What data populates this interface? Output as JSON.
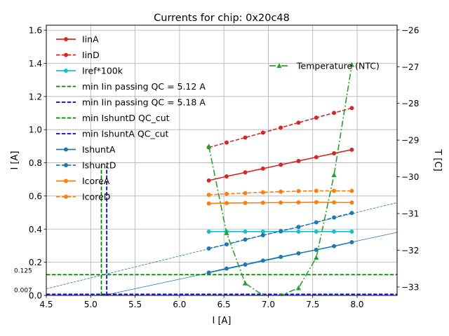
{
  "chart_data": {
    "type": "line",
    "title": "Currents for chip: 0x20c48",
    "xlabel": "I [A]",
    "ylabel": "I [A]",
    "y2label": "T [C]",
    "xlim": [
      4.5,
      8.45
    ],
    "ylim": [
      0.0,
      1.63
    ],
    "y2lim": [
      -33.23,
      -25.87
    ],
    "x_ticks": [
      "4.5",
      "5.0",
      "5.5",
      "6.0",
      "6.5",
      "7.0",
      "7.5",
      "8.0"
    ],
    "y_ticks": [
      "0.0",
      "0.2",
      "0.4",
      "0.6",
      "0.8",
      "1.0",
      "1.2",
      "1.4",
      "1.6"
    ],
    "y2_ticks": [
      "−33",
      "−32",
      "−31",
      "−30",
      "−29",
      "−28",
      "−27",
      "−26"
    ],
    "grid": true,
    "legend_placement": "upper-left",
    "x": [
      6.33,
      6.53,
      6.74,
      6.94,
      7.14,
      7.34,
      7.54,
      7.74,
      7.94
    ],
    "series": [
      {
        "name": "IinA",
        "color": "#d62728",
        "dash": "solid",
        "marker": "circle",
        "values": [
          0.693,
          0.718,
          0.742,
          0.765,
          0.788,
          0.811,
          0.834,
          0.857,
          0.879
        ]
      },
      {
        "name": "IinD",
        "color": "#d62728",
        "dash": "dashed",
        "marker": "circle",
        "values": [
          0.893,
          0.922,
          0.952,
          0.982,
          1.012,
          1.042,
          1.072,
          1.101,
          1.13
        ]
      },
      {
        "name": "Iref*100k",
        "color": "#17becf",
        "dash": "solid",
        "marker": "circle",
        "values": [
          0.385,
          0.385,
          0.385,
          0.385,
          0.385,
          0.385,
          0.385,
          0.385,
          0.385
        ]
      },
      {
        "name": "IshuntA",
        "color": "#1f77b4",
        "dash": "solid",
        "marker": "circle",
        "values": [
          0.138,
          0.162,
          0.186,
          0.21,
          0.232,
          0.254,
          0.275,
          0.297,
          0.321
        ]
      },
      {
        "name": "IshuntD",
        "color": "#1f77b4",
        "dash": "dashed",
        "marker": "circle",
        "values": [
          0.283,
          0.308,
          0.337,
          0.363,
          0.388,
          0.413,
          0.441,
          0.47,
          0.497
        ]
      },
      {
        "name": "IcoreA",
        "color": "#ff7f0e",
        "dash": "solid",
        "marker": "circle",
        "values": [
          0.555,
          0.557,
          0.558,
          0.559,
          0.56,
          0.561,
          0.562,
          0.561,
          0.56
        ]
      },
      {
        "name": "IcoreD",
        "color": "#ff7f0e",
        "dash": "dashed",
        "marker": "circle",
        "values": [
          0.607,
          0.613,
          0.617,
          0.622,
          0.626,
          0.629,
          0.631,
          0.631,
          0.63
        ]
      }
    ],
    "temperature": {
      "name": "Temperature (NTC)",
      "color": "#2ca02c",
      "marker": "triangle",
      "x": [
        6.33,
        6.53,
        6.74,
        6.94,
        7.14,
        7.34,
        7.54,
        7.74,
        7.94
      ],
      "values": [
        -29.17,
        -31.53,
        -32.9,
        -33.23,
        -33.23,
        -33.03,
        -32.2,
        -29.95,
        -26.95
      ]
    },
    "legend": [
      {
        "label": "IinA",
        "color": "#d62728",
        "dash": "solid",
        "marker": "circle"
      },
      {
        "label": "IinD",
        "color": "#d62728",
        "dash": "dashed",
        "marker": "circle"
      },
      {
        "label": "Iref*100k",
        "color": "#17becf",
        "dash": "solid",
        "marker": "circle"
      },
      {
        "label": "min Iin passing QC = 5.12 A",
        "color": "#008000",
        "dash": "dashed",
        "marker": "none"
      },
      {
        "label": "min Iin passing QC = 5.18 A",
        "color": "#0000cd",
        "dash": "dashed",
        "marker": "none"
      },
      {
        "label": "min IshuntD QC_cut",
        "color": "#008000",
        "dash": "dashed",
        "marker": "none"
      },
      {
        "label": "min IshuntA QC_cut",
        "color": "#0000cd",
        "dash": "dashed",
        "marker": "none"
      },
      {
        "label": "IshuntA",
        "color": "#1f77b4",
        "dash": "solid",
        "marker": "circle"
      },
      {
        "label": "IshuntD",
        "color": "#1f77b4",
        "dash": "dashed",
        "marker": "circle"
      },
      {
        "label": "IcoreA",
        "color": "#ff7f0e",
        "dash": "solid",
        "marker": "circle"
      },
      {
        "label": "IcoreD",
        "color": "#ff7f0e",
        "dash": "dashed",
        "marker": "circle"
      }
    ],
    "legend2_placement": "upper-right",
    "qc_vertical": [
      {
        "x": 5.12,
        "y_top": 0.8,
        "color": "#008000"
      },
      {
        "x": 5.18,
        "y_top": 0.78,
        "color": "#0000cd"
      }
    ],
    "qc_horizontal": [
      {
        "y": 0.125,
        "label": "0.125",
        "color": "#008000"
      },
      {
        "y": 0.007,
        "label": "0.007",
        "color": "#0000cd"
      }
    ],
    "fit_lines": [
      {
        "color": "#1f77b4",
        "dash": "solid",
        "x": [
          5.15,
          8.45
        ],
        "values": [
          0.0,
          0.38
        ]
      },
      {
        "color": "#1f77b4",
        "dash": "dashed",
        "x": [
          4.5,
          8.45
        ],
        "values": [
          0.04,
          0.56
        ]
      }
    ]
  }
}
